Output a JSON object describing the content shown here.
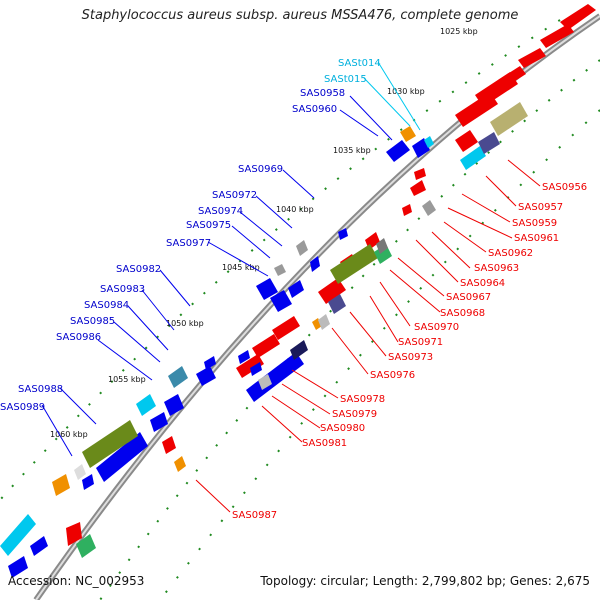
{
  "title": "Staphylococcus aureus subsp. aureus MSSA476, complete genome",
  "footer": {
    "accession": "Accession: NC_002953",
    "summary": "Topology: circular; Length: 2,799,802 bp; Genes: 2,675"
  },
  "ruler": [
    {
      "text": "1025 kbp"
    },
    {
      "text": "1030 kbp"
    },
    {
      "text": "1035 kbp"
    },
    {
      "text": "1040 kbp"
    },
    {
      "text": "1045 kbp"
    },
    {
      "text": "1050 kbp"
    },
    {
      "text": "1055 kbp"
    },
    {
      "text": "1060 kbp"
    }
  ],
  "labels": {
    "cyan": [
      "SASt014",
      "SASt015"
    ],
    "blue": [
      "SAS0958",
      "SAS0960",
      "SAS0969",
      "SAS0972",
      "SAS0974",
      "SAS0975",
      "SAS0977",
      "SAS0982",
      "SAS0983",
      "SAS0984",
      "SAS0985",
      "SAS0986",
      "SAS0988",
      "SAS0989"
    ],
    "red": [
      "SAS0956",
      "SAS0957",
      "SAS0959",
      "SAS0961",
      "SAS0962",
      "SAS0963",
      "SAS0964",
      "SAS0967",
      "SAS0968",
      "SAS0970",
      "SAS0971",
      "SAS0973",
      "SAS0976",
      "SAS0978",
      "SAS0979",
      "SAS0980",
      "SAS0981",
      "SAS0987"
    ]
  },
  "colors": {
    "blue": "#0000ee",
    "red": "#ee0000",
    "cyan": "#00c8ee",
    "orange": "#f09000",
    "olive": "#6a8a1a",
    "khaki": "#b8b070",
    "slate": "#4a4a90",
    "teal": "#3a8aaa",
    "green": "#2fb060"
  }
}
